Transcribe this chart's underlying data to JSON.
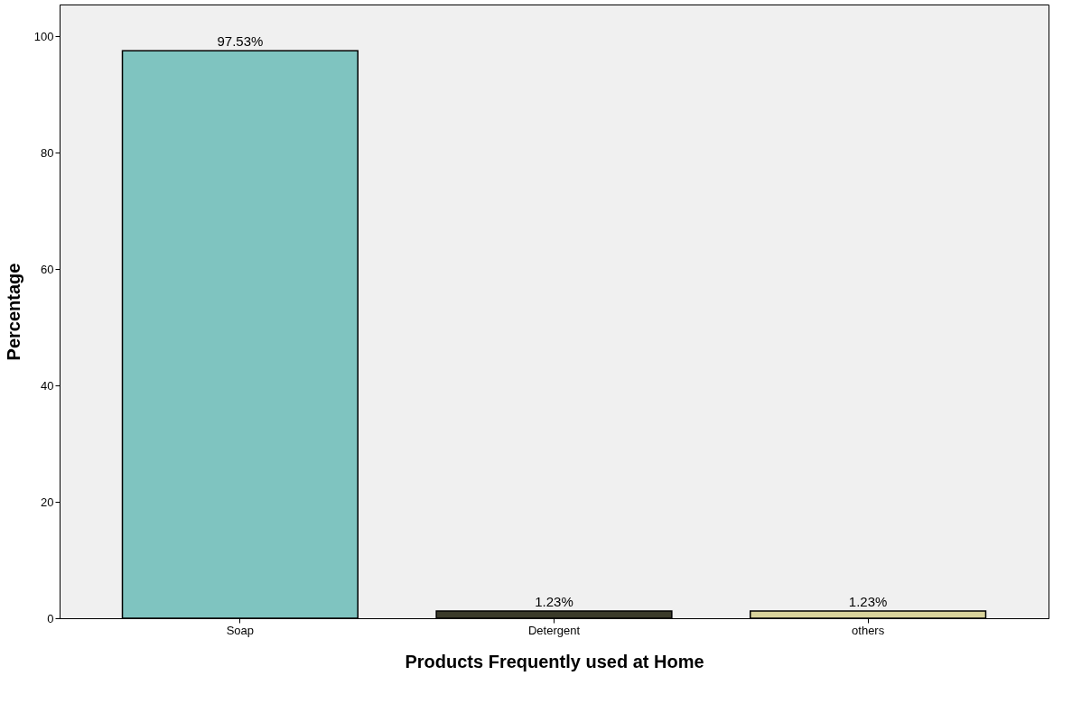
{
  "chart_data": {
    "type": "bar",
    "xlabel": "Products Frequently used at Home",
    "ylabel": "Percentage",
    "categories": [
      "Soap",
      "Detergent",
      "others"
    ],
    "values": [
      97.53,
      1.23,
      1.23
    ],
    "colors": [
      "#7fc4c0",
      "#3a3a2a",
      "#d9d39b"
    ],
    "value_labels": [
      "97.53%",
      "1.23%",
      "1.23%"
    ],
    "ylim": [
      0,
      105.5
    ],
    "yticks": [
      0,
      20,
      40,
      60,
      80,
      100
    ],
    "grid": false
  }
}
